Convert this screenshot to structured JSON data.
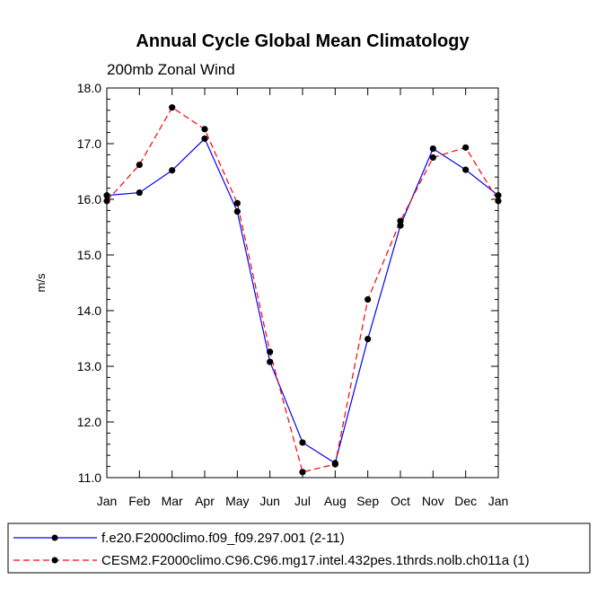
{
  "chart_data": {
    "type": "line",
    "title": "Annual Cycle Global Mean Climatology",
    "subtitle": "200mb Zonal Wind",
    "xlabel": "",
    "ylabel": "m/s",
    "categories": [
      "Jan",
      "Feb",
      "Mar",
      "Apr",
      "May",
      "Jun",
      "Jul",
      "Aug",
      "Sep",
      "Oct",
      "Nov",
      "Dec",
      "Jan"
    ],
    "ylim": [
      11.0,
      18.0
    ],
    "yticks": [
      "11.0",
      "12.0",
      "13.0",
      "14.0",
      "15.0",
      "16.0",
      "17.0",
      "18.0"
    ],
    "legend_position": "bottom",
    "series": [
      {
        "name": "f.e20.F2000climo.f09_f09.297.001 (2-11)",
        "color": "#0000ff",
        "line_style": "solid",
        "values": [
          16.07,
          16.12,
          16.52,
          17.09,
          15.78,
          13.08,
          11.63,
          11.26,
          13.49,
          15.53,
          16.91,
          16.53,
          16.07
        ]
      },
      {
        "name": "CESM2.F2000climo.C96.C96.mg17.intel.432pes.1thrds.nolb.ch011a (1)",
        "color": "#ff0000",
        "line_style": "dashed",
        "values": [
          15.97,
          16.62,
          17.65,
          17.26,
          15.93,
          13.26,
          11.1,
          11.24,
          14.2,
          15.61,
          16.75,
          16.93,
          15.97
        ]
      }
    ]
  }
}
